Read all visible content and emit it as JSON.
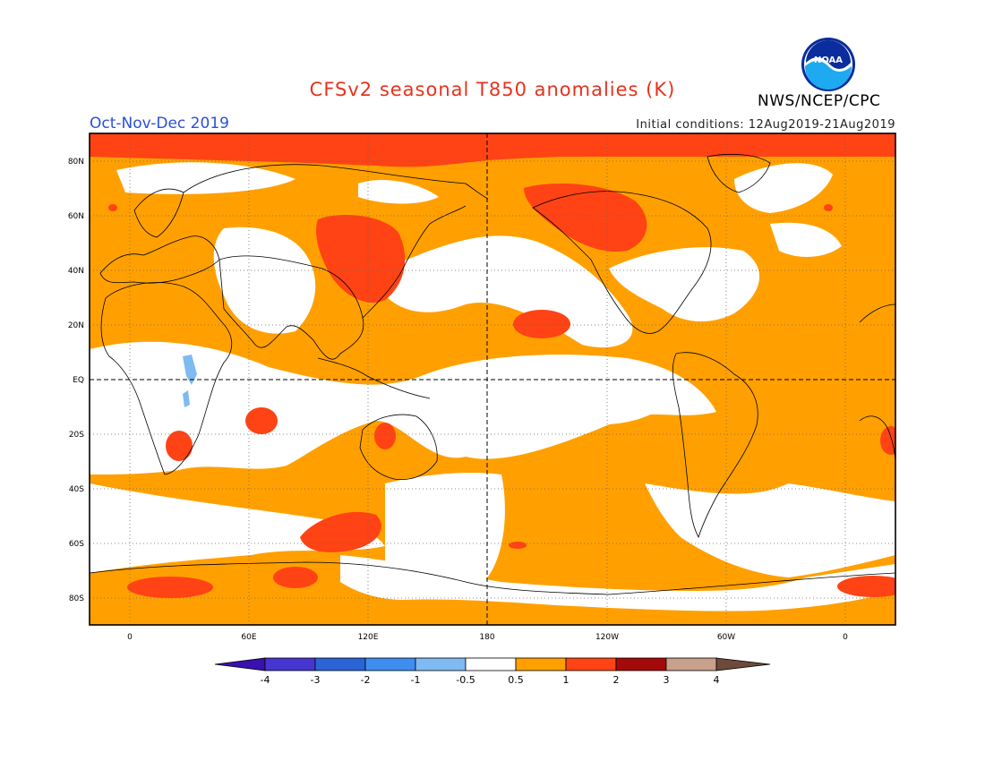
{
  "header": {
    "title": "CFSv2 seasonal T850 anomalies (K)",
    "season": "Oct-Nov-Dec 2019",
    "initial_conditions": "Initial conditions: 12Aug2019-21Aug2019",
    "agency": "NWS/NCEP/CPC",
    "logo_text": "NOAA"
  },
  "map": {
    "projection": "cylindrical equidistant",
    "lat_labels": [
      "80N",
      "60N",
      "40N",
      "20N",
      "EQ",
      "20S",
      "40S",
      "60S",
      "80S"
    ],
    "lon_labels": [
      "0",
      "60E",
      "120E",
      "180",
      "120W",
      "60W",
      "0"
    ],
    "grid": "dotted",
    "dashed_lines": [
      "Equator",
      "180 meridian"
    ]
  },
  "colorbar": {
    "labels": [
      "-4",
      "-3",
      "-2",
      "-1",
      "-0.5",
      "0.5",
      "1",
      "2",
      "3",
      "4"
    ],
    "colors": [
      "#3a10b0",
      "#4636cf",
      "#2a64d6",
      "#3e8ef0",
      "#7fbaf2",
      "#ffffff",
      "#ff9f00",
      "#ff4314",
      "#a50a0a",
      "#c8a08c",
      "#6e4a3c"
    ]
  },
  "legend_colors": {
    "anomaly_0_5_to_1": "#ffa000",
    "anomaly_1_to_2": "#ff4314",
    "anomaly_minus_1_to_minus_0_5": "#7fbaf2"
  }
}
